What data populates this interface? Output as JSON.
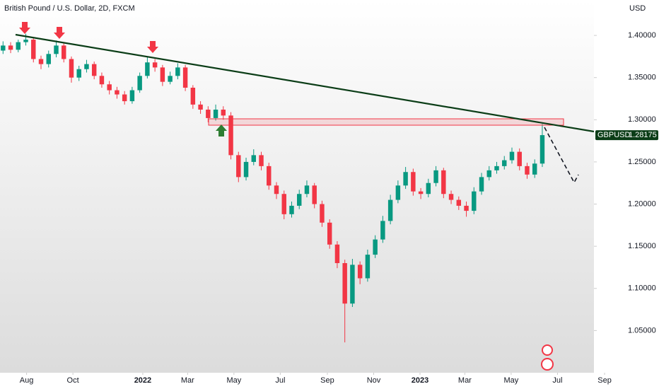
{
  "chart_data": {
    "type": "candlestick",
    "title": "British Pound / U.S. Dollar, 2D, FXCM",
    "y_axis_unit": "USD",
    "symbol": "GBPUSD",
    "last_value_label": "1.28175",
    "up_color": "#089981",
    "down_color": "#f23645",
    "xlim": [
      -4,
      778
    ],
    "xticks": [
      {
        "value": 31,
        "label": "Aug"
      },
      {
        "value": 92,
        "label": "Oct"
      },
      {
        "value": 184,
        "label": "2022"
      },
      {
        "value": 243,
        "label": "Mar"
      },
      {
        "value": 304,
        "label": "May"
      },
      {
        "value": 365,
        "label": "Jul"
      },
      {
        "value": 427,
        "label": "Sep"
      },
      {
        "value": 488,
        "label": "Nov"
      },
      {
        "value": 549,
        "label": "2023"
      },
      {
        "value": 608,
        "label": "Mar"
      },
      {
        "value": 669,
        "label": "May"
      },
      {
        "value": 730,
        "label": "Jul"
      },
      {
        "value": 792,
        "label": "Sep"
      }
    ],
    "ylim": [
      1.0,
      1.442
    ],
    "yticks": [
      {
        "value": 1.4,
        "label": "1.40000"
      },
      {
        "value": 1.35,
        "label": "1.35000"
      },
      {
        "value": 1.3,
        "label": "1.30000"
      },
      {
        "value": 1.25,
        "label": "1.25000"
      },
      {
        "value": 1.2,
        "label": "1.20000"
      },
      {
        "value": 1.15,
        "label": "1.15000"
      },
      {
        "value": 1.1,
        "label": "1.10000"
      },
      {
        "value": 1.05,
        "label": "1.05000"
      }
    ],
    "x": [
      0,
      10,
      20,
      30,
      40,
      50,
      60,
      70,
      80,
      90,
      100,
      110,
      120,
      130,
      140,
      150,
      160,
      170,
      180,
      190,
      200,
      210,
      220,
      230,
      240,
      250,
      260,
      270,
      280,
      290,
      300,
      310,
      320,
      330,
      340,
      350,
      360,
      370,
      380,
      390,
      400,
      410,
      420,
      430,
      440,
      450,
      460,
      470,
      480,
      490,
      500,
      510,
      520,
      530,
      540,
      550,
      560,
      570,
      580,
      590,
      600,
      610,
      620,
      630,
      640,
      650,
      660,
      670,
      680,
      690,
      700,
      710
    ],
    "candles": [
      [
        1.382,
        1.393,
        1.378,
        1.388
      ],
      [
        1.388,
        1.392,
        1.379,
        1.383
      ],
      [
        1.383,
        1.395,
        1.38,
        1.392
      ],
      [
        1.392,
        1.402,
        1.388,
        1.395
      ],
      [
        1.395,
        1.398,
        1.368,
        1.372
      ],
      [
        1.372,
        1.376,
        1.36,
        1.366
      ],
      [
        1.366,
        1.382,
        1.362,
        1.378
      ],
      [
        1.378,
        1.394,
        1.374,
        1.388
      ],
      [
        1.388,
        1.391,
        1.368,
        1.372
      ],
      [
        1.372,
        1.375,
        1.344,
        1.35
      ],
      [
        1.35,
        1.364,
        1.346,
        1.36
      ],
      [
        1.36,
        1.371,
        1.356,
        1.366
      ],
      [
        1.366,
        1.369,
        1.348,
        1.352
      ],
      [
        1.352,
        1.356,
        1.338,
        1.342
      ],
      [
        1.342,
        1.346,
        1.33,
        1.335
      ],
      [
        1.335,
        1.339,
        1.325,
        1.33
      ],
      [
        1.33,
        1.334,
        1.318,
        1.322
      ],
      [
        1.322,
        1.339,
        1.319,
        1.335
      ],
      [
        1.335,
        1.356,
        1.332,
        1.352
      ],
      [
        1.352,
        1.375,
        1.349,
        1.368
      ],
      [
        1.368,
        1.372,
        1.357,
        1.362
      ],
      [
        1.362,
        1.365,
        1.34,
        1.345
      ],
      [
        1.345,
        1.357,
        1.342,
        1.352
      ],
      [
        1.352,
        1.367,
        1.348,
        1.362
      ],
      [
        1.362,
        1.365,
        1.334,
        1.338
      ],
      [
        1.338,
        1.341,
        1.313,
        1.318
      ],
      [
        1.318,
        1.322,
        1.307,
        1.312
      ],
      [
        1.312,
        1.316,
        1.297,
        1.302
      ],
      [
        1.302,
        1.318,
        1.299,
        1.312
      ],
      [
        1.312,
        1.316,
        1.3,
        1.305
      ],
      [
        1.305,
        1.309,
        1.253,
        1.258
      ],
      [
        1.258,
        1.262,
        1.226,
        1.232
      ],
      [
        1.232,
        1.255,
        1.228,
        1.25
      ],
      [
        1.25,
        1.265,
        1.246,
        1.258
      ],
      [
        1.258,
        1.262,
        1.24,
        1.245
      ],
      [
        1.245,
        1.249,
        1.217,
        1.222
      ],
      [
        1.222,
        1.226,
        1.206,
        1.212
      ],
      [
        1.212,
        1.216,
        1.182,
        1.188
      ],
      [
        1.188,
        1.203,
        1.184,
        1.198
      ],
      [
        1.198,
        1.217,
        1.194,
        1.212
      ],
      [
        1.212,
        1.228,
        1.208,
        1.222
      ],
      [
        1.222,
        1.225,
        1.195,
        1.2
      ],
      [
        1.2,
        1.204,
        1.173,
        1.178
      ],
      [
        1.178,
        1.182,
        1.147,
        1.152
      ],
      [
        1.152,
        1.156,
        1.124,
        1.13
      ],
      [
        1.13,
        1.134,
        1.036,
        1.082
      ],
      [
        1.082,
        1.135,
        1.078,
        1.128
      ],
      [
        1.128,
        1.132,
        1.105,
        1.112
      ],
      [
        1.112,
        1.146,
        1.108,
        1.14
      ],
      [
        1.14,
        1.163,
        1.136,
        1.158
      ],
      [
        1.158,
        1.186,
        1.154,
        1.18
      ],
      [
        1.18,
        1.211,
        1.176,
        1.205
      ],
      [
        1.205,
        1.228,
        1.201,
        1.222
      ],
      [
        1.222,
        1.244,
        1.218,
        1.238
      ],
      [
        1.238,
        1.242,
        1.21,
        1.215
      ],
      [
        1.215,
        1.219,
        1.206,
        1.212
      ],
      [
        1.212,
        1.23,
        1.208,
        1.225
      ],
      [
        1.225,
        1.245,
        1.221,
        1.24
      ],
      [
        1.24,
        1.243,
        1.207,
        1.212
      ],
      [
        1.212,
        1.216,
        1.2,
        1.205
      ],
      [
        1.205,
        1.209,
        1.193,
        1.198
      ],
      [
        1.198,
        1.203,
        1.185,
        1.192
      ],
      [
        1.192,
        1.22,
        1.188,
        1.215
      ],
      [
        1.215,
        1.237,
        1.211,
        1.232
      ],
      [
        1.232,
        1.245,
        1.228,
        1.24
      ],
      [
        1.24,
        1.25,
        1.236,
        1.245
      ],
      [
        1.245,
        1.257,
        1.241,
        1.252
      ],
      [
        1.252,
        1.267,
        1.248,
        1.262
      ],
      [
        1.262,
        1.266,
        1.24,
        1.245
      ],
      [
        1.245,
        1.249,
        1.23,
        1.235
      ],
      [
        1.235,
        1.253,
        1.231,
        1.248
      ],
      [
        1.248,
        1.295,
        1.244,
        1.28175
      ]
    ]
  }
}
